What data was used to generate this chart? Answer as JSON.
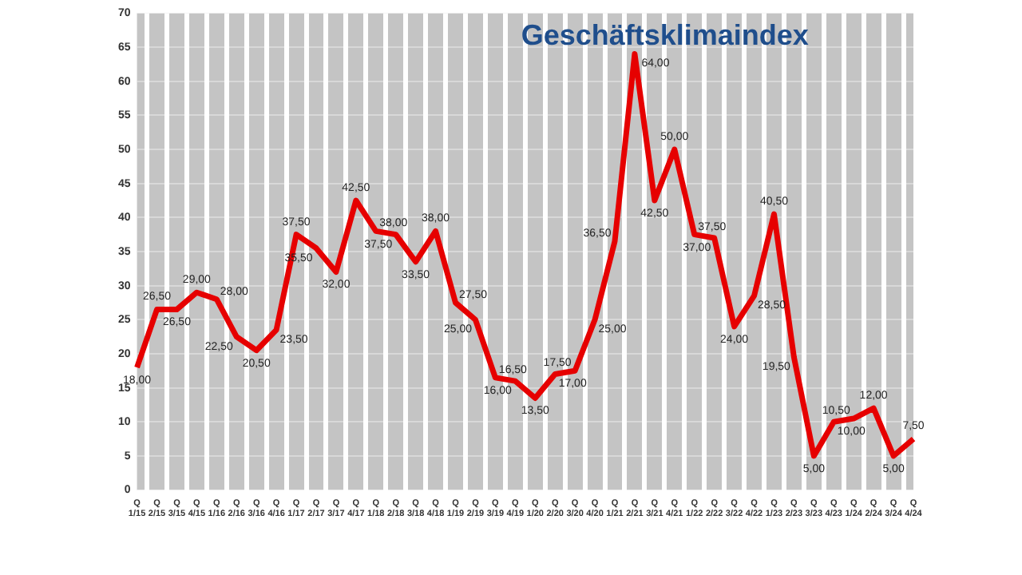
{
  "chart_data": {
    "type": "line",
    "title": "Geschäftsklimaindex",
    "categories": [
      "Q 1/15",
      "Q 2/15",
      "Q 3/15",
      "Q 4/15",
      "Q 1/16",
      "Q 2/16",
      "Q 3/16",
      "Q 4/16",
      "Q 1/17",
      "Q 2/17",
      "Q 3/17",
      "Q 4/17",
      "Q 1/18",
      "Q 2/18",
      "Q 3/18",
      "Q 4/18",
      "Q 1/19",
      "Q 2/19",
      "Q 3/19",
      "Q 4/19",
      "Q 1/20",
      "Q 2/20",
      "Q 3/20",
      "Q 4/20",
      "Q 1/21",
      "Q 2/21",
      "Q 3/21",
      "Q 4/21",
      "Q 1/22",
      "Q 2/22",
      "Q 3/22",
      "Q 4/22",
      "Q 1/23",
      "Q 2/23",
      "Q 3/23",
      "Q 4/23",
      "Q 1/24",
      "Q 2/24",
      "Q 3/24",
      "Q 4/24"
    ],
    "series": [
      {
        "color": "#e60000",
        "values": [
          18,
          26.5,
          26.5,
          29,
          28,
          22.5,
          20.5,
          23.5,
          37.5,
          35.5,
          32,
          42.5,
          38,
          37.5,
          33.5,
          38,
          27.5,
          25,
          16.5,
          16,
          13.5,
          17,
          17.5,
          25,
          36.5,
          64,
          42.5,
          50,
          37.5,
          37,
          24,
          28.5,
          40.5,
          19.5,
          5,
          10,
          10.5,
          12,
          5,
          7.5
        ],
        "value_labels": [
          "18,00",
          "26,50",
          "26,50",
          "29,00",
          "28,00",
          "22,50",
          "20,50",
          "23,50",
          "37,50",
          "35,50",
          "32,00",
          "42,50",
          "38,00",
          "37,50",
          "33,50",
          "38,00",
          "27,50",
          "25,00",
          "16,50",
          "16,00",
          "13,50",
          "17,00",
          "17,50",
          "25,00",
          "36,50",
          "64,00",
          "42,50",
          "50,00",
          "37,50",
          "37,00",
          "24,00",
          "28,50",
          "40,50",
          "19,50",
          "5,00",
          "10,00",
          "10,50",
          "12,00",
          "5,00",
          "7,50"
        ]
      }
    ],
    "ylim": [
      0,
      70
    ],
    "yticks": [
      0,
      5,
      10,
      15,
      20,
      25,
      30,
      35,
      40,
      45,
      50,
      55,
      60,
      65,
      70
    ],
    "grid": true,
    "legend": false,
    "marker": "none",
    "line_style": "solid"
  }
}
